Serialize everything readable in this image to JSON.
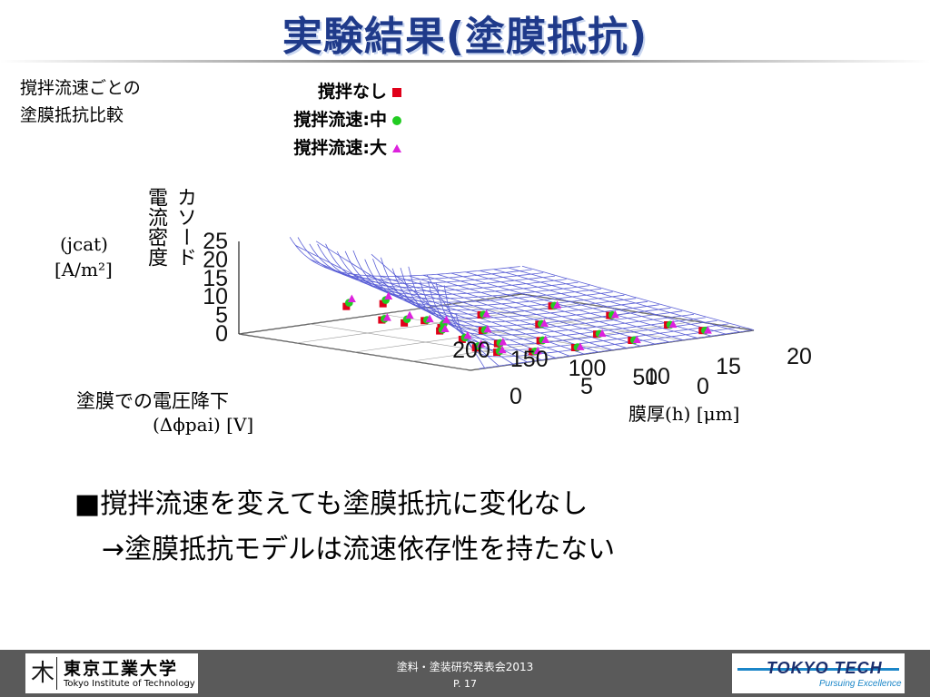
{
  "slide": {
    "title": "実験結果(塗膜抵抗)",
    "subtitle_lines": [
      "撹拌流速ごとの",
      "塗膜抵抗比較"
    ],
    "bullet1": "■撹拌流速を変えても塗膜抵抗に変化なし",
    "bullet2": "→塗膜抵抗モデルは流速依存性を持たない"
  },
  "axes_labels": {
    "y_jp_col1": "カソード",
    "y_jp_col2": "電流密度",
    "y_var": "(jcat)",
    "y_unit": "[A/m²]",
    "x_jp": "塗膜での電圧降下",
    "x_var": "(Δϕpai) [V]",
    "z": "膜厚(h) [μm]"
  },
  "footer": {
    "left_logo_jp": "東京工業大学",
    "left_logo_en": "Tokyo Institute of Technology",
    "conference": "塗料・塗装研究発表会2013",
    "page": "P. 17",
    "right_logo_main": "TOKYO TECH",
    "right_logo_sub": "Pursuing Excellence"
  },
  "colors": {
    "title": "#1f3a8a",
    "mesh": "#5a5fd6",
    "series_none": "#e0001a",
    "series_mid": "#22cc22",
    "series_high": "#dd22dd",
    "footer": "#5a5a5a"
  },
  "chart_data": {
    "type": "scatter",
    "projection": "3d",
    "surface": "fitted mesh",
    "xlabel": "塗膜での電圧降下 (Δϕpai) [V]",
    "ylabel": "膜厚(h) [μm]",
    "zlabel": "カソード電流密度 (jcat) [A/m²]",
    "xlim": [
      0,
      200
    ],
    "ylim": [
      0,
      20
    ],
    "zlim": [
      0,
      25
    ],
    "x_ticks": [
      "0",
      "50",
      "100",
      "150",
      "200"
    ],
    "y_ticks": [
      "0",
      "5",
      "10",
      "15",
      "20"
    ],
    "z_ticks": [
      "0",
      "5",
      "10",
      "15",
      "20",
      "25"
    ],
    "grid": true,
    "legend_position": "top-left",
    "series": [
      {
        "name": "撹拌なし",
        "marker": "square",
        "points": [
          {
            "x": 150,
            "y": 18,
            "z": 0.3
          },
          {
            "x": 150,
            "y": 13,
            "z": 0.6
          },
          {
            "x": 150,
            "y": 9,
            "z": 1.2
          },
          {
            "x": 150,
            "y": 6,
            "z": 3
          },
          {
            "x": 150,
            "y": 3.5,
            "z": 8
          },
          {
            "x": 100,
            "y": 18,
            "z": 0.2
          },
          {
            "x": 100,
            "y": 13,
            "z": 0.5
          },
          {
            "x": 100,
            "y": 9,
            "z": 1
          },
          {
            "x": 100,
            "y": 6,
            "z": 2.5
          },
          {
            "x": 100,
            "y": 3.5,
            "z": 6
          },
          {
            "x": 100,
            "y": 2,
            "z": 12
          },
          {
            "x": 50,
            "y": 18,
            "z": 0.1
          },
          {
            "x": 50,
            "y": 13,
            "z": 0.3
          },
          {
            "x": 50,
            "y": 9,
            "z": 0.7
          },
          {
            "x": 50,
            "y": 6,
            "z": 1.5
          },
          {
            "x": 50,
            "y": 3.5,
            "z": 4
          },
          {
            "x": 50,
            "y": 2,
            "z": 8
          },
          {
            "x": 20,
            "y": 18,
            "z": 0.05
          },
          {
            "x": 20,
            "y": 13,
            "z": 0.1
          },
          {
            "x": 20,
            "y": 9,
            "z": 0.3
          },
          {
            "x": 20,
            "y": 6,
            "z": 0.8
          },
          {
            "x": 20,
            "y": 3.5,
            "z": 2
          },
          {
            "x": 20,
            "y": 2,
            "z": 4
          }
        ]
      },
      {
        "name": "撹拌流速:中",
        "marker": "circle",
        "points": [
          {
            "x": 150,
            "y": 18,
            "z": 0.4
          },
          {
            "x": 150,
            "y": 13,
            "z": 0.7
          },
          {
            "x": 150,
            "y": 9,
            "z": 1.4
          },
          {
            "x": 150,
            "y": 6,
            "z": 3.3
          },
          {
            "x": 150,
            "y": 3.5,
            "z": 9
          },
          {
            "x": 100,
            "y": 18,
            "z": 0.3
          },
          {
            "x": 100,
            "y": 13,
            "z": 0.6
          },
          {
            "x": 100,
            "y": 9,
            "z": 1.1
          },
          {
            "x": 100,
            "y": 6,
            "z": 2.8
          },
          {
            "x": 100,
            "y": 3.5,
            "z": 7
          },
          {
            "x": 100,
            "y": 2,
            "z": 13
          },
          {
            "x": 50,
            "y": 18,
            "z": 0.15
          },
          {
            "x": 50,
            "y": 13,
            "z": 0.4
          },
          {
            "x": 50,
            "y": 9,
            "z": 0.8
          },
          {
            "x": 50,
            "y": 6,
            "z": 1.7
          },
          {
            "x": 50,
            "y": 3.5,
            "z": 4.5
          },
          {
            "x": 50,
            "y": 2,
            "z": 9
          },
          {
            "x": 20,
            "y": 18,
            "z": 0.07
          },
          {
            "x": 20,
            "y": 13,
            "z": 0.15
          },
          {
            "x": 20,
            "y": 9,
            "z": 0.4
          },
          {
            "x": 20,
            "y": 6,
            "z": 0.9
          },
          {
            "x": 20,
            "y": 3.5,
            "z": 2.3
          },
          {
            "x": 20,
            "y": 2,
            "z": 4.5
          }
        ]
      },
      {
        "name": "撹拌流速:大",
        "marker": "triangle",
        "points": [
          {
            "x": 150,
            "y": 18,
            "z": 0.5
          },
          {
            "x": 150,
            "y": 13,
            "z": 0.8
          },
          {
            "x": 150,
            "y": 9,
            "z": 1.6
          },
          {
            "x": 150,
            "y": 6,
            "z": 3.6
          },
          {
            "x": 150,
            "y": 3.5,
            "z": 10
          },
          {
            "x": 100,
            "y": 18,
            "z": 0.35
          },
          {
            "x": 100,
            "y": 13,
            "z": 0.7
          },
          {
            "x": 100,
            "y": 9,
            "z": 1.3
          },
          {
            "x": 100,
            "y": 6,
            "z": 3
          },
          {
            "x": 100,
            "y": 3.5,
            "z": 8
          },
          {
            "x": 100,
            "y": 2,
            "z": 14
          },
          {
            "x": 50,
            "y": 18,
            "z": 0.2
          },
          {
            "x": 50,
            "y": 13,
            "z": 0.45
          },
          {
            "x": 50,
            "y": 9,
            "z": 0.9
          },
          {
            "x": 50,
            "y": 6,
            "z": 1.9
          },
          {
            "x": 50,
            "y": 3.5,
            "z": 5
          },
          {
            "x": 50,
            "y": 2,
            "z": 10
          },
          {
            "x": 20,
            "y": 18,
            "z": 0.08
          },
          {
            "x": 20,
            "y": 13,
            "z": 0.18
          },
          {
            "x": 20,
            "y": 9,
            "z": 0.45
          },
          {
            "x": 20,
            "y": 6,
            "z": 1
          },
          {
            "x": 20,
            "y": 3.5,
            "z": 2.6
          },
          {
            "x": 20,
            "y": 2,
            "z": 5
          }
        ]
      }
    ]
  }
}
